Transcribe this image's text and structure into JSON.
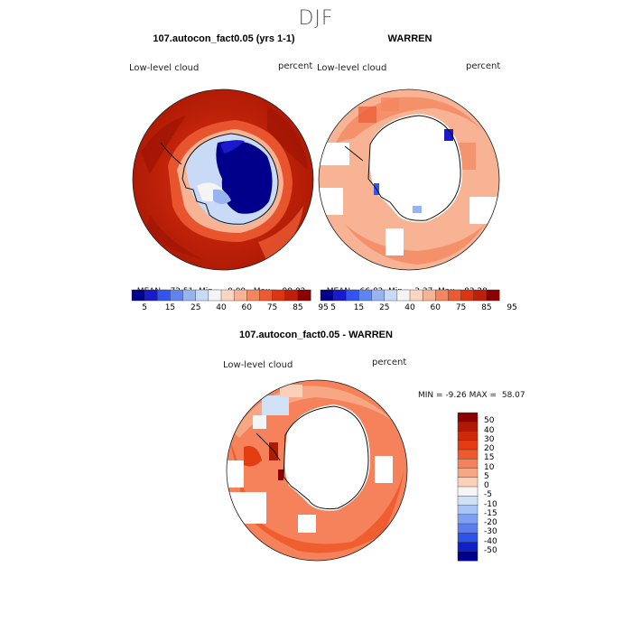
{
  "figure": {
    "season": "DJF",
    "diff_title": "107.autocon_fact0.05 - WARREN"
  },
  "panels": [
    {
      "title": "107.autocon_fact0.05 (yrs 1-1)",
      "variable": "Low-level cloud",
      "units": "percent",
      "stats": {
        "mean": "72.51",
        "min": "0.00",
        "max": "99.02"
      }
    },
    {
      "title": "WARREN",
      "variable": "Low-level cloud",
      "units": "percent",
      "stats": {
        "mean": "66.83",
        "min": "3.37",
        "max": "83.28"
      }
    },
    {
      "title": "107.autocon_fact0.05 - WARREN",
      "variable": "Low-level cloud",
      "units": "percent",
      "stats": {
        "min": "-9.26",
        "max": "58.07"
      }
    }
  ],
  "labels": {
    "mean": "MEAN=",
    "min": "Min=",
    "max": "Max=",
    "diff_min": "MIN =",
    "diff_max": "MAX ="
  },
  "colorbar_abs": {
    "colors": [
      "#00008b",
      "#1a1acc",
      "#3355ee",
      "#5f84ee",
      "#97b4f0",
      "#c8daf5",
      "#f4f4f4",
      "#fcd6c2",
      "#f7b394",
      "#f2875f",
      "#eb5a32",
      "#dd3412",
      "#c0200a",
      "#8b0000"
    ],
    "tick_labels": [
      "5",
      "15",
      "25",
      "40",
      "60",
      "75",
      "85",
      "95"
    ]
  },
  "colorbar_diff": {
    "colors": [
      "#8b0000",
      "#b01a05",
      "#cc2a08",
      "#e23c10",
      "#ef5a2a",
      "#f5825a",
      "#f8a784",
      "#fbcfb8",
      "#f5f5f5",
      "#cfe0f7",
      "#a9c4f5",
      "#7f9ff2",
      "#5a7ef0",
      "#2f52e8",
      "#0f20c8",
      "#00008b"
    ],
    "tick_labels": [
      "50",
      "40",
      "30",
      "20",
      "15",
      "10",
      "5",
      "0",
      "-5",
      "-10",
      "-15",
      "-20",
      "-30",
      "-40",
      "-50"
    ]
  }
}
